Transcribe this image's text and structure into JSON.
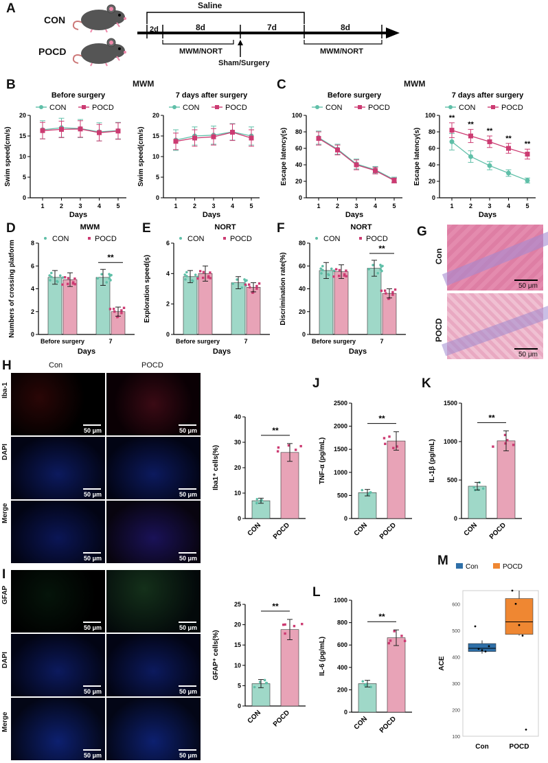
{
  "colors": {
    "con": "#5fbfa8",
    "pocd": "#cc3b72",
    "con_fill": "#9fd8c8",
    "pocd_fill": "#e8a3b7",
    "he": "#d9779e",
    "red": "#e0222a",
    "blue": "#2b3fd4",
    "green": "#62b34e",
    "box_con": "#2e6fa8",
    "box_pocd": "#ef8732"
  },
  "panelA": {
    "label": "A",
    "con": "CON",
    "pocd": "POCD",
    "saline": "Saline",
    "d1": "2d",
    "d2": "8d",
    "d3": "7d",
    "d4": "8d",
    "mwm1": "MWM/NORT",
    "mwm2": "MWM/NORT",
    "surgery": "Sham/Surgery",
    "icons": [
      "mouse-icon",
      "mouse-icon"
    ]
  },
  "panelB": {
    "label": "B",
    "heading": "MWM",
    "left_title": "Before surgery",
    "right_title": "7 days after surgery",
    "ylabel": "Swim speed(cm/s)",
    "xlabel": "Days"
  },
  "panelC": {
    "label": "C",
    "heading": "MWM",
    "left_title": "Before surgery",
    "right_title": "7 days after surgery",
    "ylabel": "Escape latency(s)",
    "xlabel": "Days"
  },
  "panelD": {
    "label": "D",
    "title": "MWM",
    "ylabel": "Numbers of crossing platform",
    "xlabel": "Days"
  },
  "panelE": {
    "label": "E",
    "title": "NORT",
    "ylabel": "Exploration speed(s)",
    "xlabel": "Days"
  },
  "panelF": {
    "label": "F",
    "title": "NORT",
    "ylabel": "Discrimination rate(%)",
    "xlabel": "Days"
  },
  "panelG": {
    "label": "G",
    "rows": [
      "Con",
      "POCD"
    ],
    "scale": "50 μm"
  },
  "panelH": {
    "label": "H",
    "cols": [
      "Con",
      "POCD"
    ],
    "rows": [
      "Iba-1",
      "DAPI",
      "Merge"
    ],
    "scale": "50 μm"
  },
  "panelI": {
    "label": "I",
    "rows": [
      "GFAP",
      "DAPI",
      "Merge"
    ],
    "scale": "50 μm"
  },
  "labels": {
    "J": "J",
    "K": "K",
    "L": "L",
    "M": "M"
  },
  "legend": {
    "con": "CON",
    "pocd": "POCD"
  },
  "sig": "**",
  "chart_data": [
    {
      "id": "B-left",
      "type": "line",
      "title": "Before surgery",
      "ylabel": "Swim speed(cm/s)",
      "xlabel": "Days",
      "x": [
        1,
        2,
        3,
        4,
        5
      ],
      "ylim": [
        0,
        20
      ],
      "yticks": [
        0,
        5,
        10,
        15,
        20
      ],
      "series": [
        {
          "name": "CON",
          "values": [
            16.5,
            17.0,
            16.8,
            16.0,
            16.3
          ],
          "err": [
            2.2,
            2.3,
            2.2,
            2.2,
            2.0
          ]
        },
        {
          "name": "POCD",
          "values": [
            16.3,
            16.6,
            16.7,
            15.8,
            16.2
          ],
          "err": [
            2.0,
            2.0,
            2.0,
            2.0,
            2.0
          ]
        }
      ]
    },
    {
      "id": "B-right",
      "type": "line",
      "title": "7 days after surgery",
      "ylabel": "Swim speed(cm/s)",
      "xlabel": "Days",
      "x": [
        1,
        2,
        3,
        4,
        5
      ],
      "ylim": [
        0,
        20
      ],
      "yticks": [
        0,
        5,
        10,
        15,
        20
      ],
      "series": [
        {
          "name": "CON",
          "values": [
            14.0,
            15.0,
            15.2,
            16.0,
            15.0
          ],
          "err": [
            2.5,
            2.2,
            2.2,
            2.0,
            2.2
          ]
        },
        {
          "name": "POCD",
          "values": [
            13.7,
            14.5,
            14.8,
            15.9,
            14.5
          ],
          "err": [
            2.0,
            2.0,
            2.0,
            2.0,
            2.0
          ]
        }
      ]
    },
    {
      "id": "C-left",
      "type": "line",
      "title": "Before surgery",
      "ylabel": "Escape latency(s)",
      "xlabel": "Days",
      "x": [
        1,
        2,
        3,
        4,
        5
      ],
      "ylim": [
        0,
        100
      ],
      "yticks": [
        0,
        20,
        40,
        60,
        80,
        100
      ],
      "series": [
        {
          "name": "CON",
          "values": [
            73,
            59,
            41,
            34,
            22
          ],
          "err": [
            8,
            6,
            6,
            4,
            3
          ]
        },
        {
          "name": "POCD",
          "values": [
            72,
            58,
            40,
            33,
            21
          ],
          "err": [
            8,
            6,
            6,
            4,
            3
          ]
        }
      ]
    },
    {
      "id": "C-right",
      "type": "line",
      "title": "7 days after surgery",
      "ylabel": "Escape latency(s)",
      "xlabel": "Days",
      "x": [
        1,
        2,
        3,
        4,
        5
      ],
      "ylim": [
        0,
        100
      ],
      "yticks": [
        0,
        20,
        40,
        60,
        80,
        100
      ],
      "series": [
        {
          "name": "CON",
          "values": [
            68,
            50,
            39,
            30,
            21
          ],
          "err": [
            10,
            7,
            5,
            4,
            3
          ]
        },
        {
          "name": "POCD",
          "values": [
            82,
            75,
            68,
            60,
            53
          ],
          "err": [
            9,
            8,
            7,
            6,
            6
          ]
        }
      ],
      "annotations": [
        "**",
        "**",
        "**",
        "**",
        "**"
      ]
    },
    {
      "id": "D",
      "type": "bar",
      "title": "MWM",
      "ylabel": "Numbers of crossing platform",
      "xlabel": "Days",
      "categories": [
        "Before surgery",
        "7"
      ],
      "ylim": [
        0,
        8
      ],
      "yticks": [
        0,
        2,
        4,
        6,
        8
      ],
      "series": [
        {
          "name": "CON",
          "values": [
            5.0,
            5.0
          ],
          "err": [
            0.6,
            0.7
          ]
        },
        {
          "name": "POCD",
          "values": [
            4.8,
            2.0
          ],
          "err": [
            0.6,
            0.4
          ]
        }
      ],
      "annotation": "**"
    },
    {
      "id": "E",
      "type": "bar",
      "title": "NORT",
      "ylabel": "Exploration speed(s)",
      "xlabel": "Days",
      "categories": [
        "Before surgery",
        "7"
      ],
      "ylim": [
        0,
        6
      ],
      "yticks": [
        0,
        2,
        4,
        6
      ],
      "series": [
        {
          "name": "CON",
          "values": [
            3.8,
            3.4
          ],
          "err": [
            0.4,
            0.4
          ]
        },
        {
          "name": "POCD",
          "values": [
            4.0,
            3.1
          ],
          "err": [
            0.5,
            0.3
          ]
        }
      ]
    },
    {
      "id": "F",
      "type": "bar",
      "title": "NORT",
      "ylabel": "Discrimination rate(%)",
      "xlabel": "Days",
      "categories": [
        "Before surgery",
        "7"
      ],
      "ylim": [
        0,
        80
      ],
      "yticks": [
        0,
        20,
        40,
        60,
        80
      ],
      "series": [
        {
          "name": "CON",
          "values": [
            56,
            58
          ],
          "err": [
            7,
            7
          ]
        },
        {
          "name": "POCD",
          "values": [
            55,
            36
          ],
          "err": [
            6,
            4
          ]
        }
      ],
      "annotation": "**"
    },
    {
      "id": "H-bar",
      "type": "bar",
      "ylabel": "Iba1⁺ cells(%)",
      "categories": [
        "CON",
        "POCD"
      ],
      "values": [
        7,
        26
      ],
      "err": [
        1,
        3.5
      ],
      "ylim": [
        0,
        40
      ],
      "yticks": [
        0,
        10,
        20,
        30,
        40
      ],
      "annotation": "**"
    },
    {
      "id": "J",
      "type": "bar",
      "ylabel": "TNF-α (pg/mL)",
      "categories": [
        "CON",
        "POCD"
      ],
      "values": [
        560,
        1680
      ],
      "err": [
        70,
        200
      ],
      "ylim": [
        0,
        2500
      ],
      "yticks": [
        0,
        500,
        1000,
        1500,
        2000,
        2500
      ],
      "annotation": "**"
    },
    {
      "id": "K",
      "type": "bar",
      "ylabel": "IL-1β (pg/mL)",
      "categories": [
        "CON",
        "POCD"
      ],
      "values": [
        420,
        1010
      ],
      "err": [
        50,
        130
      ],
      "ylim": [
        0,
        1500
      ],
      "yticks": [
        0,
        500,
        1000,
        1500
      ],
      "annotation": "**"
    },
    {
      "id": "I-bar",
      "type": "bar",
      "ylabel": "GFAP⁺ cells(%)",
      "categories": [
        "CON",
        "POCD"
      ],
      "values": [
        5.5,
        18.8
      ],
      "err": [
        1,
        2.5
      ],
      "ylim": [
        0,
        25
      ],
      "yticks": [
        0,
        5,
        10,
        15,
        20,
        25
      ],
      "annotation": "**"
    },
    {
      "id": "L",
      "type": "bar",
      "ylabel": "IL-6 (pg/mL)",
      "categories": [
        "CON",
        "POCD"
      ],
      "values": [
        255,
        665
      ],
      "err": [
        30,
        70
      ],
      "ylim": [
        0,
        1000
      ],
      "yticks": [
        0,
        200,
        400,
        600,
        800,
        1000
      ],
      "annotation": "**"
    },
    {
      "id": "M",
      "type": "box",
      "ylabel": "ACE",
      "categories": [
        "Con",
        "POCD"
      ],
      "ylim": [
        100,
        650
      ],
      "yticks": [
        100,
        200,
        300,
        400,
        500,
        600
      ],
      "boxes": [
        {
          "name": "Con",
          "q1": 420,
          "median": 432,
          "q3": 450,
          "whisker_low": 412,
          "whisker_high": 462,
          "points": [
            515,
            430,
            425,
            420,
            440
          ]
        },
        {
          "name": "POCD",
          "q1": 485,
          "median": 532,
          "q3": 620,
          "whisker_low": 480,
          "whisker_high": 650,
          "points": [
            650,
            600,
            520,
            480,
            125
          ]
        }
      ]
    }
  ]
}
